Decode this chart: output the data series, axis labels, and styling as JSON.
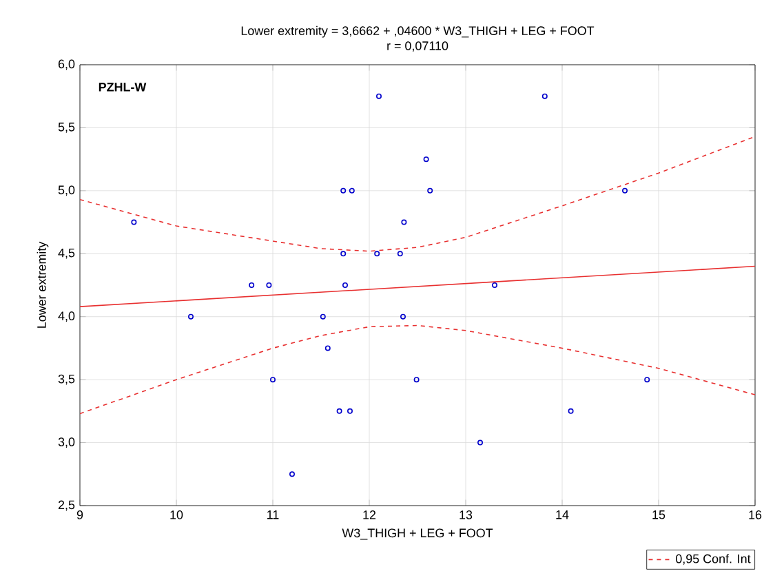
{
  "chart_data": {
    "type": "scatter",
    "title": "Lower extremity = 3,6662 + ,04600 * W3_THIGH + LEG + FOOT",
    "subtitle": "r = 0,07110",
    "xlabel": "W3_THIGH + LEG + FOOT",
    "ylabel": "Lower extremity",
    "annotations": [
      "PZHL-W"
    ],
    "xlim": [
      9,
      16
    ],
    "xticks": [
      9,
      10,
      11,
      12,
      13,
      14,
      15,
      16
    ],
    "ylim": [
      2.5,
      6.0
    ],
    "yticks": [
      {
        "value": 2.5,
        "label": "2,5"
      },
      {
        "value": 3.0,
        "label": "3,0"
      },
      {
        "value": 3.5,
        "label": "3,5"
      },
      {
        "value": 4.0,
        "label": "4,0"
      },
      {
        "value": 4.5,
        "label": "4,5"
      },
      {
        "value": 5.0,
        "label": "5,0"
      },
      {
        "value": 5.5,
        "label": "5,5"
      },
      {
        "value": 6.0,
        "label": "6,0"
      }
    ],
    "grid": true,
    "legend": "bottom right",
    "marker": "circle",
    "series": [
      {
        "color": "#0000cc",
        "x": [
          9.56,
          10.15,
          10.78,
          10.96,
          11.0,
          11.2,
          11.52,
          11.57,
          11.69,
          11.8,
          11.73,
          11.82,
          11.73,
          11.75,
          12.1,
          12.08,
          12.32,
          12.36,
          12.35,
          12.49,
          12.59,
          12.63,
          13.3,
          13.82,
          13.15,
          14.09,
          14.65,
          14.88
        ],
        "values": [
          4.75,
          4.0,
          4.25,
          4.25,
          3.5,
          2.75,
          4.0,
          3.75,
          3.25,
          3.25,
          5.0,
          5.0,
          4.5,
          4.25,
          5.75,
          4.5,
          4.5,
          4.75,
          4.0,
          3.5,
          5.25,
          5.0,
          4.25,
          5.75,
          3.0,
          3.25,
          5.0,
          3.5
        ]
      },
      {
        "type": "line",
        "color": "#e83030",
        "marker": "none",
        "line_style": "solid",
        "x": [
          9,
          16
        ],
        "values": [
          4.08,
          4.4
        ]
      },
      {
        "type": "line",
        "name": "0,95 Conf. Int",
        "color": "#e83030",
        "marker": "none",
        "line_style": "dashed",
        "x": [
          9,
          10,
          11,
          11.5,
          12,
          12.5,
          13,
          14,
          15,
          16
        ],
        "values": [
          4.93,
          4.72,
          4.6,
          4.54,
          4.52,
          4.55,
          4.63,
          4.88,
          5.14,
          5.43
        ]
      },
      {
        "type": "line",
        "color": "#e83030",
        "marker": "none",
        "line_style": "dashed",
        "x": [
          9,
          10,
          11,
          11.5,
          12,
          12.5,
          13,
          14,
          15,
          16
        ],
        "values": [
          3.23,
          3.5,
          3.75,
          3.85,
          3.92,
          3.93,
          3.89,
          3.75,
          3.59,
          3.38
        ]
      }
    ]
  }
}
